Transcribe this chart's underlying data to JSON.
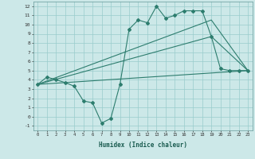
{
  "xlabel": "Humidex (Indice chaleur)",
  "background_color": "#cce8e8",
  "grid_color": "#99cccc",
  "line_color": "#2d7d6e",
  "xlim": [
    -0.5,
    23.5
  ],
  "ylim": [
    -1.5,
    12.5
  ],
  "xticks": [
    0,
    1,
    2,
    3,
    4,
    5,
    6,
    7,
    8,
    9,
    10,
    11,
    12,
    13,
    14,
    15,
    16,
    17,
    18,
    19,
    20,
    21,
    22,
    23
  ],
  "yticks": [
    -1,
    0,
    1,
    2,
    3,
    4,
    5,
    6,
    7,
    8,
    9,
    10,
    11,
    12
  ],
  "series1_x": [
    0,
    1,
    2,
    3,
    4,
    5,
    6,
    7,
    8,
    9,
    10,
    11,
    12,
    13,
    14,
    15,
    16,
    17,
    18,
    19,
    20,
    21,
    22,
    23
  ],
  "series1_y": [
    3.5,
    4.3,
    4.0,
    3.7,
    3.3,
    1.7,
    1.5,
    -0.7,
    -0.2,
    3.5,
    9.5,
    10.5,
    10.2,
    12.0,
    10.7,
    11.0,
    11.5,
    11.5,
    11.5,
    8.7,
    5.2,
    5.0,
    5.0,
    5.0
  ],
  "series2_x": [
    0,
    23
  ],
  "series2_y": [
    3.5,
    5.0
  ],
  "series3_x": [
    0,
    19,
    23
  ],
  "series3_y": [
    3.5,
    8.7,
    5.0
  ],
  "series4_x": [
    0,
    19,
    23
  ],
  "series4_y": [
    3.5,
    10.5,
    5.0
  ]
}
